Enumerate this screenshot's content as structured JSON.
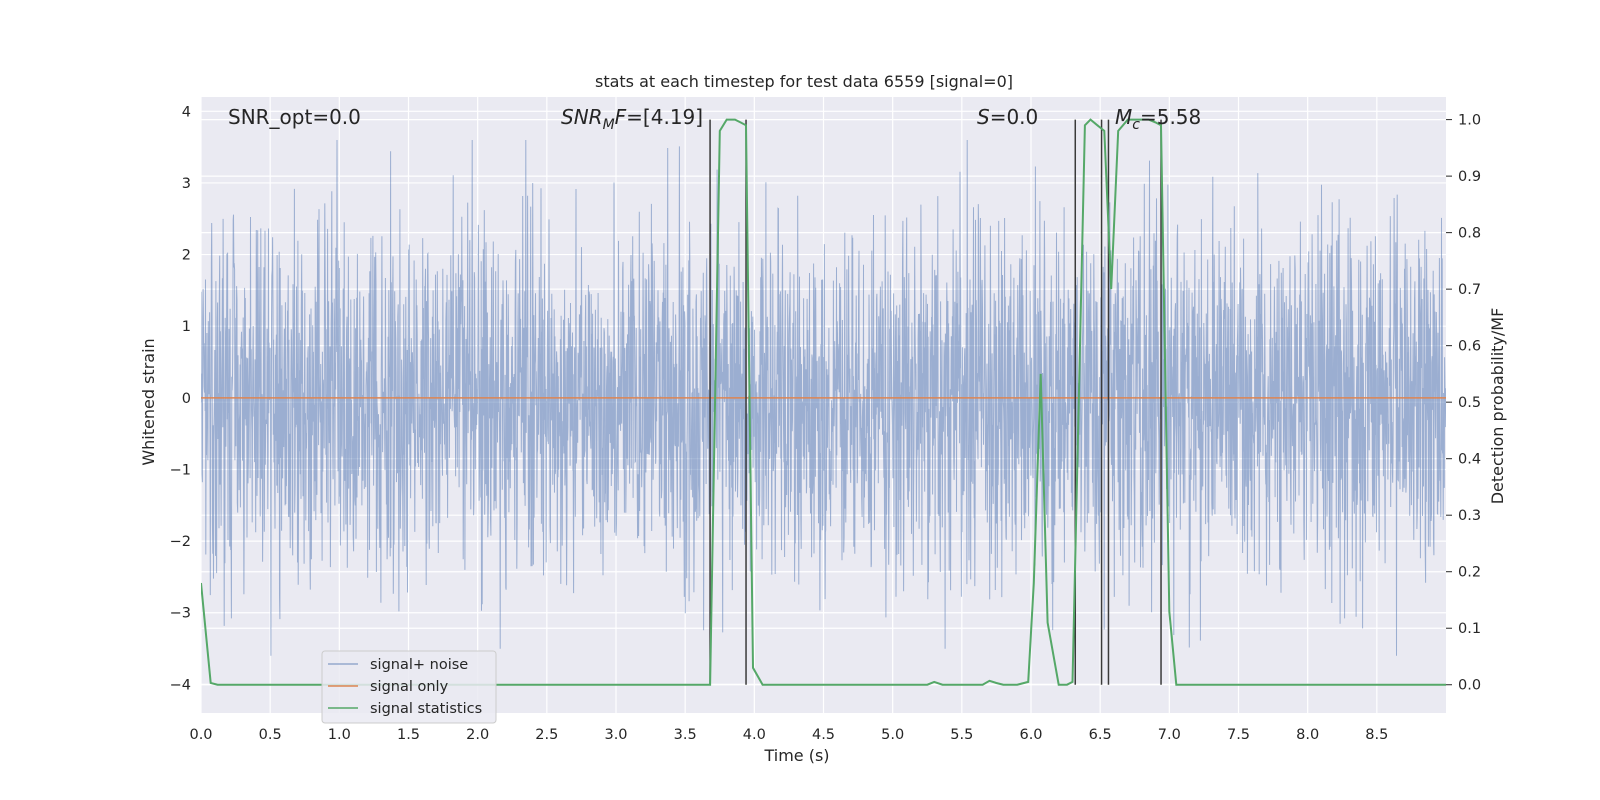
{
  "chart_data": {
    "type": "line",
    "title": "stats at each timestep for test data 6559 [signal=0]",
    "xlabel": "Time (s)",
    "ylabel": "Whitened strain",
    "ylabel_right": "Detection probability/MF",
    "xlim": [
      0.0,
      9.0
    ],
    "ylim": [
      -4.4,
      4.2
    ],
    "ylim_right": [
      -0.05,
      1.04
    ],
    "xticks": [
      "0.0",
      "0.5",
      "1.0",
      "1.5",
      "2.0",
      "2.5",
      "3.0",
      "3.5",
      "4.0",
      "4.5",
      "5.0",
      "5.5",
      "6.0",
      "6.5",
      "7.0",
      "7.5",
      "8.0",
      "8.5"
    ],
    "yticks": [
      "4",
      "3",
      "2",
      "1",
      "0",
      "−1",
      "−2",
      "−3",
      "−4"
    ],
    "yticks_right": [
      "1.0",
      "0.9",
      "0.8",
      "0.7",
      "0.6",
      "0.5",
      "0.4",
      "0.3",
      "0.2",
      "0.1",
      "0.0"
    ],
    "grid": true,
    "legend_position": "lower-left",
    "annotations": {
      "snr_opt": "SNR_opt=0.0",
      "snr_mf_italic": "SNR",
      "snr_mf_sub": "M",
      "snr_mf_italic2": "F",
      "snr_mf_value": "=[4.19]",
      "s_italic": "S",
      "s_value": "=0.0",
      "mc_italic": "M",
      "mc_sub": "c",
      "mc_value": "=5.58"
    },
    "series": [
      {
        "name": "signal+ noise",
        "color": "#4c72b0",
        "axis": "left",
        "description_values": "whitened noise, mostly within ±1.7 with spikes up to about ±3.6",
        "typical_amplitude": 1.7,
        "peak_amplitude": 3.6
      },
      {
        "name": "signal only",
        "color": "#dd8452",
        "axis": "left",
        "x": [
          0.0,
          9.0
        ],
        "y": [
          0.0,
          0.0
        ]
      },
      {
        "name": "signal statistics",
        "color": "#55a868",
        "axis": "right",
        "x": [
          0.0,
          0.07,
          0.12,
          0.5,
          1.0,
          2.0,
          3.0,
          3.5,
          3.68,
          3.75,
          3.8,
          3.86,
          3.9,
          3.94,
          3.99,
          4.06,
          4.5,
          5.0,
          5.25,
          5.3,
          5.36,
          5.5,
          5.65,
          5.7,
          5.75,
          5.8,
          5.9,
          5.98,
          6.02,
          6.07,
          6.12,
          6.2,
          6.26,
          6.3,
          6.39,
          6.43,
          6.48,
          6.53,
          6.58,
          6.63,
          6.7,
          6.8,
          6.85,
          6.9,
          6.94,
          7.0,
          7.05,
          7.1,
          7.5,
          8.0,
          9.0
        ],
        "y": [
          0.18,
          0.003,
          0.0,
          0.0,
          0.0,
          0.0,
          0.0,
          0.0,
          0.0,
          0.98,
          1.0,
          1.0,
          0.995,
          0.99,
          0.03,
          0.0,
          0.0,
          0.0,
          0.0,
          0.005,
          0.0,
          0.0,
          0.0,
          0.007,
          0.003,
          0.0,
          0.0,
          0.005,
          0.18,
          0.55,
          0.11,
          0.0,
          0.0,
          0.005,
          0.99,
          1.0,
          0.99,
          0.98,
          0.7,
          0.98,
          1.0,
          1.0,
          1.0,
          0.995,
          0.99,
          0.13,
          0.0,
          0.0,
          0.0,
          0.0,
          0.0
        ]
      }
    ],
    "vertical_lines_x": [
      3.68,
      3.94,
      6.32,
      6.51,
      6.56,
      6.94
    ]
  }
}
